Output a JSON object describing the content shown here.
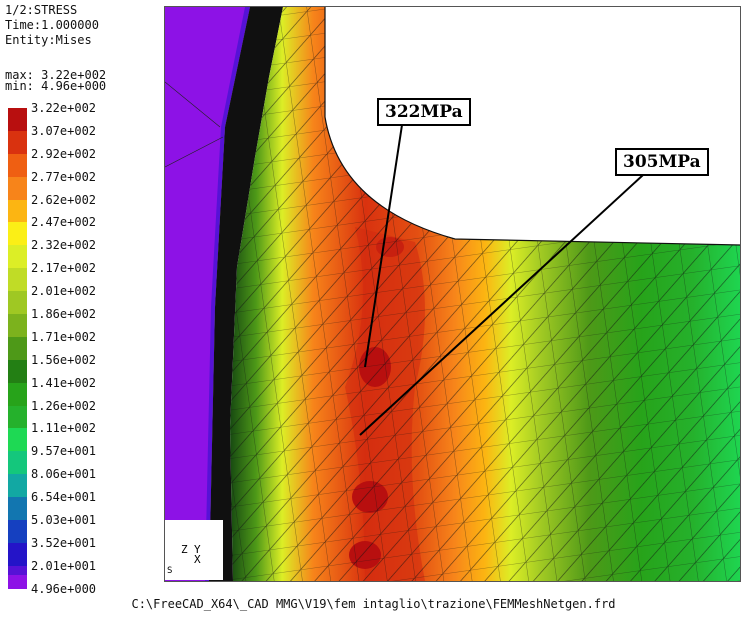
{
  "header": {
    "step": "1/2:STRESS",
    "time": "Time:1.000000",
    "entity": "Entity:Mises"
  },
  "range": {
    "max": "max: 3.22e+002",
    "min": "min: 4.96e+000"
  },
  "legend": {
    "entries": [
      {
        "label": "3.22e+002",
        "color": "#b80f0f"
      },
      {
        "label": "3.07e+002",
        "color": "#d9320f"
      },
      {
        "label": "2.92e+002",
        "color": "#ef5f12"
      },
      {
        "label": "2.77e+002",
        "color": "#f7841a"
      },
      {
        "label": "2.62e+002",
        "color": "#fcb512"
      },
      {
        "label": "2.47e+002",
        "color": "#fbef16"
      },
      {
        "label": "2.32e+002",
        "color": "#dcee26"
      },
      {
        "label": "2.17e+002",
        "color": "#c0dc26"
      },
      {
        "label": "2.01e+002",
        "color": "#9fc823"
      },
      {
        "label": "1.86e+002",
        "color": "#7cb21d"
      },
      {
        "label": "1.71e+002",
        "color": "#4e9918"
      },
      {
        "label": "1.56e+002",
        "color": "#237f14"
      },
      {
        "label": "1.41e+002",
        "color": "#27a31a"
      },
      {
        "label": "1.26e+002",
        "color": "#25b12c"
      },
      {
        "label": "1.11e+002",
        "color": "#1ed954"
      },
      {
        "label": "9.57e+001",
        "color": "#14c77c"
      },
      {
        "label": "8.06e+001",
        "color": "#12a8a3"
      },
      {
        "label": "6.54e+001",
        "color": "#1276b0"
      },
      {
        "label": "5.03e+001",
        "color": "#1540c0"
      },
      {
        "label": "3.52e+001",
        "color": "#2414c8"
      },
      {
        "label": "2.01e+001",
        "color": "#5612d6"
      },
      {
        "label": "4.96e+000",
        "color": "#8d12e6"
      }
    ]
  },
  "viewport": {
    "callouts": {
      "a": "322MPa",
      "b": "305MPa"
    },
    "axes": {
      "z": "Z",
      "y": "Y",
      "x": "X",
      "corner": "S"
    }
  },
  "footer": {
    "path": "C:\\FreeCAD_X64\\_CAD MMG\\V19\\fem intaglio\\trazione\\FEMMeshNetgen.frd"
  }
}
